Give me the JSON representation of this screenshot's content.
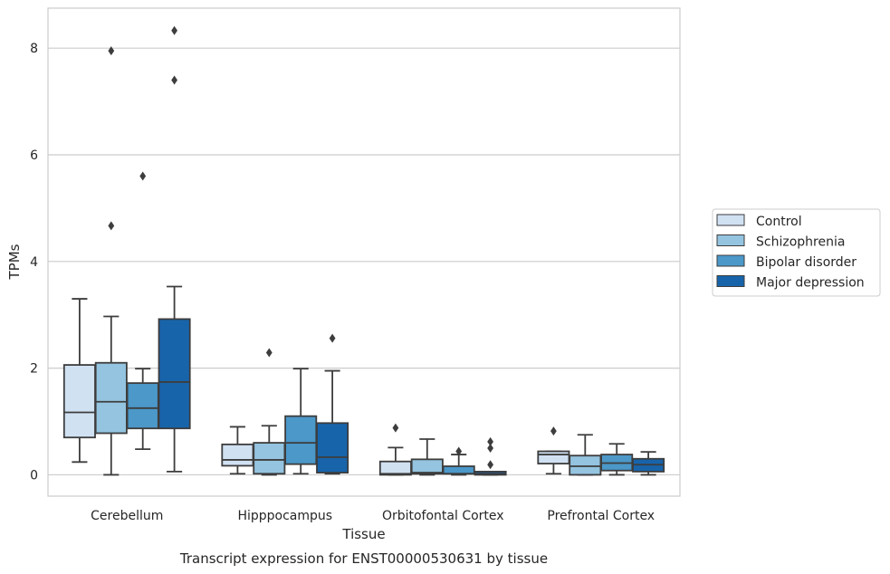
{
  "chart_data": {
    "type": "box",
    "caption": "Transcript expression for ENST00000530631 by tissue",
    "xlabel": "Tissue",
    "ylabel": "TPMs",
    "ylim": [
      -0.4,
      8.75
    ],
    "yticks": [
      0,
      2,
      4,
      6,
      8
    ],
    "grid": true,
    "legend_position": "right",
    "categories": [
      "Cerebellum",
      "Hipppocampus",
      "Orbitofontal Cortex",
      "Prefrontal Cortex"
    ],
    "series": [
      {
        "name": "Control",
        "color": "#d0e1f2",
        "boxes": [
          {
            "whislo": 0.24,
            "q1": 0.7,
            "med": 1.17,
            "q3": 2.06,
            "whishi": 3.3,
            "fliers": []
          },
          {
            "whislo": 0.02,
            "q1": 0.17,
            "med": 0.28,
            "q3": 0.57,
            "whishi": 0.9,
            "fliers": []
          },
          {
            "whislo": 0.0,
            "q1": 0.0,
            "med": 0.02,
            "q3": 0.25,
            "whishi": 0.51,
            "fliers": [
              0.88
            ]
          },
          {
            "whislo": 0.02,
            "q1": 0.21,
            "med": 0.38,
            "q3": 0.44,
            "whishi": 0.44,
            "fliers": [
              0.82
            ]
          }
        ]
      },
      {
        "name": "Schizophrenia",
        "color": "#94c4df",
        "boxes": [
          {
            "whislo": 0.0,
            "q1": 0.78,
            "med": 1.37,
            "q3": 2.1,
            "whishi": 2.97,
            "fliers": [
              7.95,
              4.67
            ]
          },
          {
            "whislo": 0.0,
            "q1": 0.02,
            "med": 0.28,
            "q3": 0.6,
            "whishi": 0.92,
            "fliers": [
              2.29
            ]
          },
          {
            "whislo": 0.0,
            "q1": 0.02,
            "med": 0.04,
            "q3": 0.29,
            "whishi": 0.67,
            "fliers": []
          },
          {
            "whislo": 0.0,
            "q1": 0.0,
            "med": 0.16,
            "q3": 0.36,
            "whishi": 0.75,
            "fliers": []
          }
        ]
      },
      {
        "name": "Bipolar disorder",
        "color": "#4b98c9",
        "boxes": [
          {
            "whislo": 0.48,
            "q1": 0.87,
            "med": 1.25,
            "q3": 1.72,
            "whishi": 1.99,
            "fliers": [
              5.6
            ]
          },
          {
            "whislo": 0.02,
            "q1": 0.2,
            "med": 0.6,
            "q3": 1.1,
            "whishi": 1.99,
            "fliers": []
          },
          {
            "whislo": 0.0,
            "q1": 0.02,
            "med": 0.02,
            "q3": 0.16,
            "whishi": 0.38,
            "fliers": [
              0.44
            ]
          },
          {
            "whislo": 0.0,
            "q1": 0.08,
            "med": 0.22,
            "q3": 0.38,
            "whishi": 0.58,
            "fliers": []
          }
        ]
      },
      {
        "name": "Major depression",
        "color": "#1764ab",
        "boxes": [
          {
            "whislo": 0.06,
            "q1": 0.87,
            "med": 1.74,
            "q3": 2.92,
            "whishi": 3.53,
            "fliers": [
              8.33,
              7.4
            ]
          },
          {
            "whislo": 0.02,
            "q1": 0.04,
            "med": 0.33,
            "q3": 0.97,
            "whishi": 1.95,
            "fliers": [
              2.56
            ]
          },
          {
            "whislo": 0.0,
            "q1": 0.0,
            "med": 0.02,
            "q3": 0.06,
            "whishi": 0.06,
            "fliers": [
              0.62,
              0.5,
              0.19
            ]
          },
          {
            "whislo": 0.0,
            "q1": 0.06,
            "med": 0.19,
            "q3": 0.3,
            "whishi": 0.43,
            "fliers": []
          }
        ]
      }
    ]
  }
}
